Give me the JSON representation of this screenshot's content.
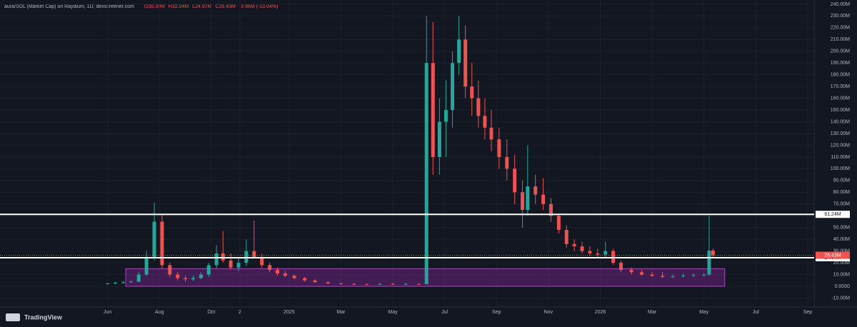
{
  "chart_data": {
    "type": "candlestick",
    "title": "aura/SOL (Market Cap) on Raydium, 1D, dexscreener.com",
    "ohlc_header": [
      "O30.39M",
      "H32.04M",
      "L24.97M",
      "C26.43M",
      "-3.96M (-13.04%)"
    ],
    "brand": "TradingView",
    "up_color": "#26a69a",
    "down_color": "#ef5350",
    "xlim": [
      -4.15,
      27.25
    ],
    "xticks": [
      {
        "value": 0,
        "label": "Jun"
      },
      {
        "value": 2,
        "label": "Aug"
      },
      {
        "value": 4,
        "label": "Oct"
      },
      {
        "value": 5.1,
        "label": "2"
      },
      {
        "value": 7,
        "label": "2025"
      },
      {
        "value": 9,
        "label": "Mar"
      },
      {
        "value": 11,
        "label": "May"
      },
      {
        "value": 13,
        "label": "Jul"
      },
      {
        "value": 15,
        "label": "Sep"
      },
      {
        "value": 17,
        "label": "Nov"
      },
      {
        "value": 19,
        "label": "2026"
      },
      {
        "value": 21,
        "label": "Mar"
      },
      {
        "value": 23,
        "label": "May"
      },
      {
        "value": 25,
        "label": "Jul"
      },
      {
        "value": 27,
        "label": "Sep"
      }
    ],
    "ylim": [
      -17.6,
      243.6
    ],
    "yticks": [
      {
        "value": 240,
        "label": "240.00M"
      },
      {
        "value": 230,
        "label": "230.00M"
      },
      {
        "value": 220,
        "label": "220.00M"
      },
      {
        "value": 210,
        "label": "210.00M"
      },
      {
        "value": 200,
        "label": "200.00M"
      },
      {
        "value": 190,
        "label": "190.00M"
      },
      {
        "value": 180,
        "label": "180.00M"
      },
      {
        "value": 170,
        "label": "170.00M"
      },
      {
        "value": 160,
        "label": "160.00M"
      },
      {
        "value": 150,
        "label": "150.00M"
      },
      {
        "value": 140,
        "label": "140.00M"
      },
      {
        "value": 130,
        "label": "130.00M"
      },
      {
        "value": 120,
        "label": "120.00M"
      },
      {
        "value": 110,
        "label": "110.00M"
      },
      {
        "value": 100,
        "label": "100.00M"
      },
      {
        "value": 90,
        "label": "90.00M"
      },
      {
        "value": 80,
        "label": "80.00M"
      },
      {
        "value": 70,
        "label": "70.00M"
      },
      {
        "value": 60,
        "label": "60.00M"
      },
      {
        "value": 50,
        "label": "50.00M"
      },
      {
        "value": 40,
        "label": "40.00M"
      },
      {
        "value": 30,
        "label": "30.00M"
      },
      {
        "value": 20,
        "label": "20.00M"
      },
      {
        "value": 10,
        "label": "10.00M"
      },
      {
        "value": 0,
        "label": "0.0000"
      },
      {
        "value": -10,
        "label": "-10.00M"
      }
    ],
    "grid": true,
    "levels": [
      {
        "value": 61.24,
        "label": "61.24M"
      },
      {
        "value": 24.34,
        "label": "24.34M"
      }
    ],
    "last_price": {
      "value": 26.43,
      "label": "26.43M"
    },
    "zone": {
      "x": [
        0.7,
        23.8
      ],
      "y": [
        0,
        15
      ]
    },
    "x": [
      0.0,
      0.3,
      0.6,
      0.9,
      1.2,
      1.5,
      1.8,
      2.1,
      2.4,
      2.7,
      3.0,
      3.3,
      3.6,
      3.9,
      4.2,
      4.45,
      4.75,
      5.05,
      5.35,
      5.65,
      5.95,
      6.25,
      6.55,
      6.85,
      7.2,
      7.6,
      8.0,
      8.5,
      9.0,
      9.5,
      10.0,
      10.5,
      11.0,
      11.5,
      12.0,
      12.3,
      12.55,
      12.8,
      13.05,
      13.3,
      13.55,
      13.8,
      14.05,
      14.3,
      14.55,
      14.8,
      15.1,
      15.4,
      15.7,
      16.0,
      16.2,
      16.5,
      16.8,
      17.1,
      17.4,
      17.7,
      18.0,
      18.3,
      18.6,
      18.9,
      19.2,
      19.5,
      19.8,
      20.2,
      20.6,
      21.0,
      21.4,
      21.8,
      22.2,
      22.6,
      23.0,
      23.2,
      23.35
    ],
    "ohlc": [
      [
        2,
        3,
        1.5,
        2.5
      ],
      [
        2.5,
        4,
        2,
        3
      ],
      [
        3,
        4.5,
        2.5,
        3.5
      ],
      [
        3.5,
        5,
        3,
        4
      ],
      [
        4,
        12,
        3.5,
        10
      ],
      [
        10,
        30,
        9,
        25
      ],
      [
        25,
        71,
        22,
        55
      ],
      [
        55,
        62,
        15,
        18
      ],
      [
        18,
        20,
        8,
        10
      ],
      [
        10,
        12,
        5,
        7
      ],
      [
        7,
        9,
        4,
        6
      ],
      [
        6,
        9,
        4.5,
        7
      ],
      [
        7,
        12,
        6,
        10
      ],
      [
        10,
        20,
        8,
        18
      ],
      [
        18,
        35,
        15,
        28
      ],
      [
        28,
        47,
        20,
        22
      ],
      [
        22,
        28,
        14,
        16
      ],
      [
        16,
        25,
        13,
        20
      ],
      [
        20,
        40,
        17,
        30
      ],
      [
        30,
        56,
        24,
        25
      ],
      [
        25,
        28,
        16,
        18
      ],
      [
        18,
        20,
        12,
        14
      ],
      [
        14,
        16,
        9,
        11
      ],
      [
        11,
        13,
        8,
        9
      ],
      [
        9,
        10,
        6,
        7
      ],
      [
        7,
        8,
        4,
        5
      ],
      [
        5,
        6,
        3,
        3.5
      ],
      [
        3.5,
        4,
        2,
        2.5
      ],
      [
        2.5,
        3,
        1.5,
        2
      ],
      [
        2,
        3,
        1.2,
        1.8
      ],
      [
        1.8,
        2.5,
        1.2,
        1.5
      ],
      [
        1.5,
        3,
        1.2,
        2
      ],
      [
        2,
        3,
        1.2,
        1.5
      ],
      [
        1.5,
        3,
        1,
        2
      ],
      [
        2,
        2.5,
        1.2,
        1.8
      ],
      [
        1.8,
        230,
        1.5,
        190
      ],
      [
        190,
        225,
        95,
        110
      ],
      [
        110,
        160,
        95,
        140
      ],
      [
        140,
        175,
        110,
        150
      ],
      [
        150,
        200,
        135,
        190
      ],
      [
        190,
        230,
        180,
        210
      ],
      [
        210,
        222,
        160,
        170
      ],
      [
        170,
        190,
        145,
        160
      ],
      [
        160,
        175,
        135,
        145
      ],
      [
        145,
        160,
        125,
        135
      ],
      [
        135,
        150,
        115,
        125
      ],
      [
        125,
        135,
        100,
        110
      ],
      [
        110,
        125,
        90,
        100
      ],
      [
        100,
        112,
        70,
        80
      ],
      [
        80,
        90,
        50,
        65
      ],
      [
        65,
        120,
        60,
        85
      ],
      [
        85,
        95,
        70,
        78
      ],
      [
        78,
        92,
        65,
        70
      ],
      [
        70,
        75,
        55,
        60
      ],
      [
        60,
        62,
        45,
        48
      ],
      [
        48,
        52,
        33,
        36
      ],
      [
        36,
        40,
        30,
        34
      ],
      [
        34,
        38,
        28,
        30
      ],
      [
        30,
        34,
        26,
        28
      ],
      [
        28,
        32,
        25,
        27
      ],
      [
        27,
        38,
        24,
        30
      ],
      [
        30,
        32,
        18,
        20
      ],
      [
        20,
        22,
        12,
        14
      ],
      [
        14,
        16,
        10,
        12
      ],
      [
        12,
        14,
        9,
        10
      ],
      [
        10,
        12,
        8,
        9
      ],
      [
        9,
        12,
        7,
        8
      ],
      [
        8,
        10,
        7,
        8.5
      ],
      [
        8.5,
        11,
        7.5,
        9
      ],
      [
        9,
        11,
        8,
        9.5
      ],
      [
        9.5,
        11,
        8.5,
        10
      ],
      [
        10,
        60,
        9,
        30.39
      ],
      [
        30.39,
        32.04,
        24.97,
        26.43
      ]
    ]
  }
}
